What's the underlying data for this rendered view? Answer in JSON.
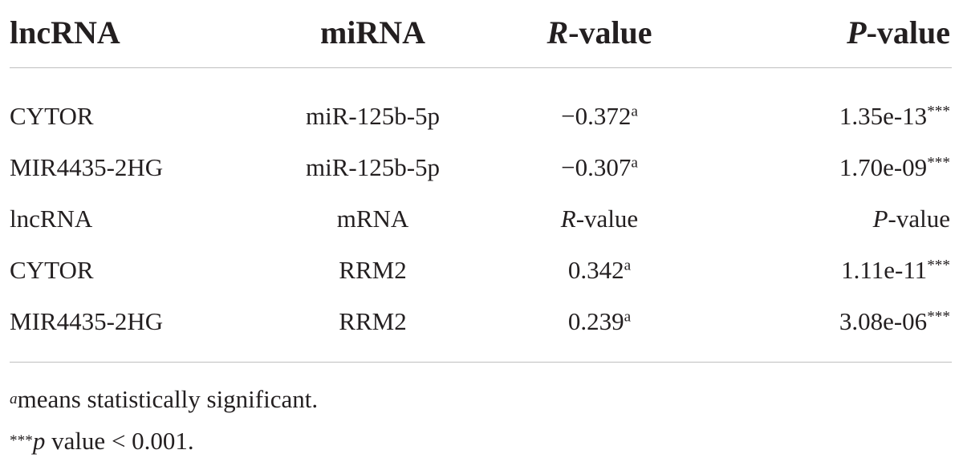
{
  "table": {
    "header": {
      "lncrna": "lncRNA",
      "mirna": "miRNA",
      "r_letter": "R",
      "r_rest": "-value",
      "p_letter": "P",
      "p_rest": "-value"
    },
    "rows": [
      {
        "lncrna": "CYTOR",
        "partner": "miR-125b-5p",
        "r_value": "−0.372",
        "r_sup": "a",
        "p_value": "1.35e-13",
        "p_sup": "***"
      },
      {
        "lncrna": "MIR4435-2HG",
        "partner": "miR-125b-5p",
        "r_value": "−0.307",
        "r_sup": "a",
        "p_value": "1.70e-09",
        "p_sup": "***"
      }
    ],
    "subheader": {
      "lncrna": "lncRNA",
      "mrna": "mRNA",
      "r_letter": "R",
      "r_rest": "-value",
      "p_letter": "P",
      "p_rest": "-value"
    },
    "rows2": [
      {
        "lncrna": "CYTOR",
        "partner": "RRM2",
        "r_value": "0.342",
        "r_sup": "a",
        "p_value": "1.11e-11",
        "p_sup": "***"
      },
      {
        "lncrna": "MIR4435-2HG",
        "partner": "RRM2",
        "r_value": "0.239",
        "r_sup": "a",
        "p_value": "3.08e-06",
        "p_sup": "***"
      }
    ]
  },
  "footnotes": {
    "a_mark": "a",
    "a_text": "means statistically significant.",
    "p_mark": "***",
    "p_letter": "p",
    "p_text": " value < 0.001."
  }
}
